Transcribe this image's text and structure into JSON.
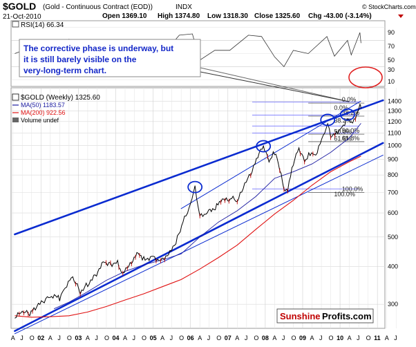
{
  "header": {
    "symbol": "$GOLD",
    "description": "(Gold - Continuous Contract (EOD))",
    "exchange": "INDX",
    "date": "21-Oct-2010",
    "open": "Open 1369.10",
    "high": "High 1374.80",
    "low": "Low 1318.30",
    "close": "Close 1325.60",
    "change": "Chg -43.00 (-3.14%)",
    "source": "© StockCharts.com"
  },
  "rsi_panel": {
    "label": "RSI(14) 66.34",
    "ticks": [
      "90",
      "70",
      "50",
      "30",
      "10"
    ]
  },
  "annotation": {
    "line1": "The corrective phase is underway, but",
    "line2": "it is still barely visible on the",
    "line3": "very-long-term chart."
  },
  "legend": {
    "price": "$GOLD (Weekly) 1325.60",
    "ma50": "MA(50) 1183.57",
    "ma200": "MA(200) 922.56",
    "volume": "Volume undef"
  },
  "watermark": {
    "brand1": "Sunshine",
    "brand2": "Profits.com"
  },
  "colors": {
    "channel": "#0a2bd0",
    "ma200": "#e01010",
    "ma50": "#1a1aa0",
    "fib": "#6060ff",
    "circle_red": "#e02020",
    "candle_down": "#c00000"
  },
  "chart_data": {
    "type": "line",
    "title": "$GOLD (Gold - Continuous Contract (EOD))",
    "scale": "log",
    "ylim": [
      250,
      1550
    ],
    "y_ticks": [
      300,
      400,
      500,
      600,
      700,
      800,
      900,
      1000,
      1100,
      1200,
      1300,
      1400
    ],
    "x_ticks": [
      "A",
      "J",
      "O",
      "02",
      "A",
      "J",
      "O",
      "03",
      "A",
      "J",
      "O",
      "04",
      "A",
      "J",
      "O",
      "05",
      "A",
      "J",
      "O",
      "06",
      "A",
      "J",
      "O",
      "07",
      "A",
      "J",
      "O",
      "08",
      "A",
      "J",
      "O",
      "09",
      "A",
      "J",
      "O",
      "10",
      "A",
      "J",
      "O",
      "11",
      "A",
      "J"
    ],
    "series": [
      {
        "name": "$GOLD (Weekly) 1325.60",
        "points": [
          [
            2001.55,
            270
          ],
          [
            2001.75,
            282
          ],
          [
            2001.95,
            278
          ],
          [
            2002.1,
            292
          ],
          [
            2002.3,
            305
          ],
          [
            2002.5,
            318
          ],
          [
            2002.75,
            315
          ],
          [
            2002.9,
            343
          ],
          [
            2003.1,
            370
          ],
          [
            2003.3,
            330
          ],
          [
            2003.5,
            350
          ],
          [
            2003.7,
            375
          ],
          [
            2003.95,
            415
          ],
          [
            2004.15,
            408
          ],
          [
            2004.3,
            420
          ],
          [
            2004.4,
            380
          ],
          [
            2004.6,
            405
          ],
          [
            2004.85,
            445
          ],
          [
            2005.0,
            425
          ],
          [
            2005.25,
            430
          ],
          [
            2005.45,
            420
          ],
          [
            2005.7,
            445
          ],
          [
            2005.9,
            495
          ],
          [
            2006.05,
            560
          ],
          [
            2006.25,
            640
          ],
          [
            2006.37,
            720
          ],
          [
            2006.5,
            580
          ],
          [
            2006.7,
            600
          ],
          [
            2006.95,
            632
          ],
          [
            2007.1,
            655
          ],
          [
            2007.35,
            670
          ],
          [
            2007.5,
            650
          ],
          [
            2007.7,
            740
          ],
          [
            2007.9,
            820
          ],
          [
            2008.05,
            920
          ],
          [
            2008.2,
            990
          ],
          [
            2008.35,
            880
          ],
          [
            2008.5,
            950
          ],
          [
            2008.6,
            880
          ],
          [
            2008.75,
            715
          ],
          [
            2008.85,
            720
          ],
          [
            2009.0,
            880
          ],
          [
            2009.15,
            985
          ],
          [
            2009.3,
            890
          ],
          [
            2009.45,
            950
          ],
          [
            2009.6,
            940
          ],
          [
            2009.8,
            1080
          ],
          [
            2009.92,
            1200
          ],
          [
            2010.0,
            1080
          ],
          [
            2010.15,
            1110
          ],
          [
            2010.3,
            1150
          ],
          [
            2010.45,
            1240
          ],
          [
            2010.55,
            1190
          ],
          [
            2010.7,
            1260
          ],
          [
            2010.78,
            1370
          ],
          [
            2010.81,
            1326
          ]
        ]
      },
      {
        "name": "MA(50) 1183.57",
        "points": [
          [
            2002.6,
            290
          ],
          [
            2003.0,
            305
          ],
          [
            2003.5,
            330
          ],
          [
            2004.0,
            360
          ],
          [
            2004.5,
            385
          ],
          [
            2005.0,
            405
          ],
          [
            2005.5,
            420
          ],
          [
            2006.0,
            440
          ],
          [
            2006.5,
            500
          ],
          [
            2007.0,
            560
          ],
          [
            2007.5,
            610
          ],
          [
            2008.0,
            680
          ],
          [
            2008.5,
            780
          ],
          [
            2009.0,
            820
          ],
          [
            2009.5,
            870
          ],
          [
            2010.0,
            950
          ],
          [
            2010.5,
            1060
          ],
          [
            2010.81,
            1184
          ]
        ]
      },
      {
        "name": "MA(200) 922.56",
        "points": [
          [
            2001.55,
            275
          ],
          [
            2002.0,
            272
          ],
          [
            2002.5,
            273
          ],
          [
            2003.0,
            275
          ],
          [
            2003.5,
            283
          ],
          [
            2004.0,
            295
          ],
          [
            2004.5,
            310
          ],
          [
            2005.0,
            325
          ],
          [
            2005.5,
            343
          ],
          [
            2006.0,
            362
          ],
          [
            2006.5,
            392
          ],
          [
            2007.0,
            428
          ],
          [
            2007.5,
            470
          ],
          [
            2008.0,
            530
          ],
          [
            2008.5,
            595
          ],
          [
            2009.0,
            660
          ],
          [
            2009.5,
            740
          ],
          [
            2010.0,
            820
          ],
          [
            2010.5,
            885
          ],
          [
            2010.81,
            923
          ]
        ]
      }
    ],
    "rsi": [
      [
        2001.55,
        50
      ],
      [
        2002.0,
        60
      ],
      [
        2002.5,
        62
      ],
      [
        2003.0,
        72
      ],
      [
        2003.3,
        42
      ],
      [
        2003.6,
        60
      ],
      [
        2004.0,
        68
      ],
      [
        2004.4,
        35
      ],
      [
        2004.8,
        62
      ],
      [
        2005.2,
        45
      ],
      [
        2005.6,
        55
      ],
      [
        2005.95,
        78
      ],
      [
        2006.3,
        80
      ],
      [
        2006.5,
        40
      ],
      [
        2006.9,
        55
      ],
      [
        2007.3,
        55
      ],
      [
        2007.8,
        78
      ],
      [
        2008.15,
        76
      ],
      [
        2008.5,
        45
      ],
      [
        2008.75,
        30
      ],
      [
        2009.0,
        55
      ],
      [
        2009.4,
        50
      ],
      [
        2009.9,
        76
      ],
      [
        2010.1,
        46
      ],
      [
        2010.45,
        70
      ],
      [
        2010.55,
        48
      ],
      [
        2010.78,
        82
      ],
      [
        2010.81,
        66
      ]
    ],
    "fibonacci_left": [
      {
        "label": "0.0%",
        "y": 1390
      },
      {
        "label": "38.2%",
        "y": 1260
      },
      {
        "label": "50.0%",
        "y": 1160
      },
      {
        "label": "61.8%",
        "y": 1100
      },
      {
        "label": "100.0%",
        "y": 720
      }
    ],
    "fibonacci_right": [
      {
        "label": "0.0%",
        "y": 1380
      },
      {
        "label": "38.2%",
        "y": 1250
      },
      {
        "label": "50.0%",
        "y": 1090
      },
      {
        "label": "61.8%",
        "y": 1030
      },
      {
        "label": "100.0%",
        "y": 700
      }
    ],
    "highlights": [
      {
        "x": 2006.37,
        "y": 730
      },
      {
        "x": 2008.2,
        "y": 995
      },
      {
        "x": 2009.92,
        "y": 1215
      },
      {
        "x": 2010.45,
        "y": 1265
      }
    ],
    "channel_lines": [
      [
        [
          2001.55,
          510
        ],
        [
          2011.4,
          1410
        ]
      ],
      [
        [
          2001.55,
          245
        ],
        [
          2011.4,
          1020
        ]
      ],
      [
        [
          2001.55,
          240
        ],
        [
          2011.4,
          930
        ]
      ],
      [
        [
          2006.0,
          620
        ],
        [
          2010.8,
          1400
        ]
      ]
    ]
  }
}
